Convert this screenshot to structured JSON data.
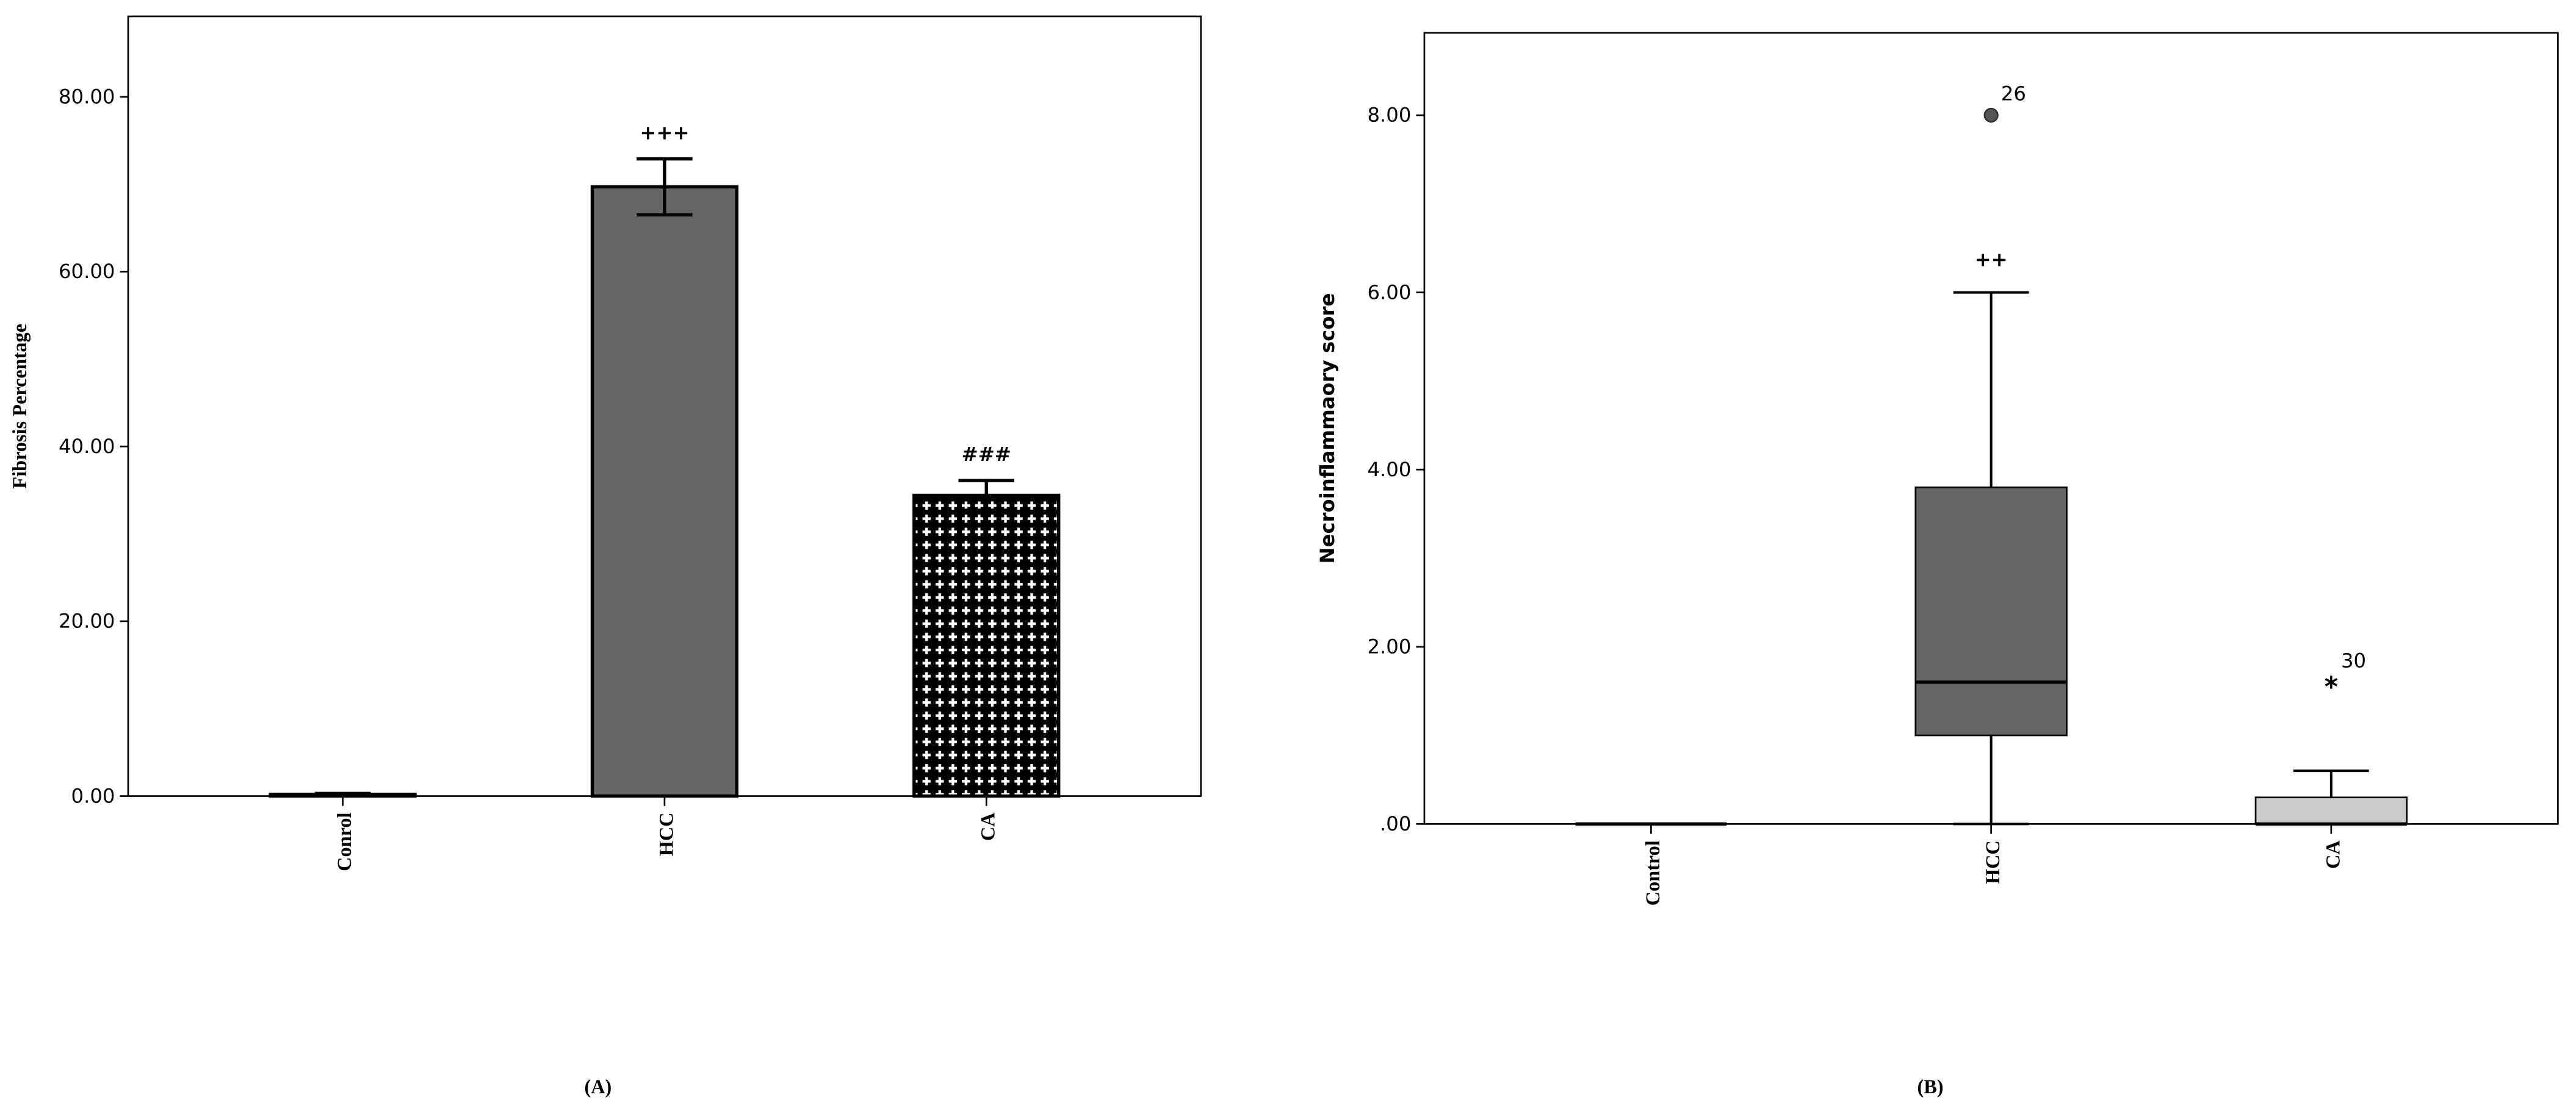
{
  "chart_data": [
    {
      "type": "bar",
      "panel_label": "(A)",
      "y_label": "Fibrosis Percentage",
      "categories": [
        "Conrol",
        "HCC",
        "CA"
      ],
      "values": [
        0.2,
        69.7,
        34.4
      ],
      "errors": [
        0.1,
        3.2,
        1.7
      ],
      "colors": [
        "#ffffff",
        "#666666",
        "#000000"
      ],
      "patterns": [
        null,
        null,
        "crosses"
      ],
      "annotations": [
        {
          "x": "HCC",
          "text": "+++"
        },
        {
          "x": "CA",
          "text": "###"
        }
      ],
      "ylim": [
        0,
        89.2
      ],
      "yticks": [
        {
          "value": 0,
          "label": "0.00"
        },
        {
          "value": 20,
          "label": "20.00"
        },
        {
          "value": 40,
          "label": "40.00"
        },
        {
          "value": 60,
          "label": "60.00"
        },
        {
          "value": 80,
          "label": "80.00"
        }
      ]
    },
    {
      "type": "box",
      "panel_label": "(B)",
      "y_label": "Necroinflammaory score",
      "categories": [
        "Control",
        "HCC",
        "CA"
      ],
      "min": [
        0,
        0,
        0
      ],
      "q1": [
        0,
        1.0,
        0
      ],
      "median": [
        0,
        1.6,
        0
      ],
      "q3": [
        0,
        3.8,
        0.3
      ],
      "max": [
        0,
        6.0,
        0.6
      ],
      "colors": [
        "#cccccc",
        "#666666",
        "#cccccc"
      ],
      "outliers": [
        {
          "x": "HCC",
          "value": 8.0,
          "label": "26",
          "marker": "circle"
        },
        {
          "x": "CA",
          "value": 1.6,
          "label": "30",
          "marker": "star"
        }
      ],
      "annotations": [
        {
          "x": "HCC",
          "text": "++"
        }
      ],
      "ylim": [
        0,
        8.93
      ],
      "yticks": [
        {
          "value": 0,
          "label": ".00"
        },
        {
          "value": 2,
          "label": "2.00"
        },
        {
          "value": 4,
          "label": "4.00"
        },
        {
          "value": 6,
          "label": "6.00"
        },
        {
          "value": 8,
          "label": "8.00"
        }
      ]
    }
  ]
}
